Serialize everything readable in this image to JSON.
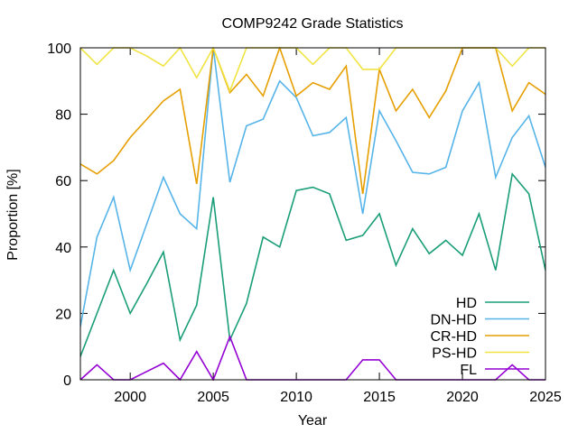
{
  "chart_data": {
    "type": "line",
    "title": "COMP9242 Grade Statistics",
    "xlabel": "Year",
    "ylabel": "Proportion [%]",
    "xlim": [
      1997,
      2025
    ],
    "ylim": [
      0,
      100
    ],
    "xticks": [
      2000,
      2005,
      2010,
      2015,
      2020,
      2025
    ],
    "yticks": [
      0,
      20,
      40,
      60,
      80,
      100
    ],
    "grid": false,
    "legend_position": "bottom-right",
    "x": [
      1997,
      1998,
      1999,
      2000,
      2001,
      2002,
      2003,
      2004,
      2005,
      2006,
      2007,
      2008,
      2009,
      2010,
      2011,
      2012,
      2013,
      2014,
      2015,
      2016,
      2017,
      2018,
      2019,
      2020,
      2021,
      2022,
      2023,
      2024,
      2025
    ],
    "series": [
      {
        "name": "HD",
        "color": "#1a9e77",
        "values": [
          7,
          20,
          33,
          20,
          29,
          38.5,
          12,
          22.5,
          55,
          12,
          23,
          43,
          40,
          57,
          58,
          56,
          42,
          43.5,
          50,
          34.5,
          45.5,
          38,
          42,
          37.5,
          50,
          33,
          62,
          56,
          33
        ]
      },
      {
        "name": "DN-HD",
        "color": "#56b4e9",
        "values": [
          16,
          43,
          55,
          33,
          47,
          61,
          50,
          45.5,
          100,
          59.5,
          76.5,
          78.5,
          90,
          85,
          73.5,
          74.5,
          79,
          50,
          81,
          72,
          62.5,
          62,
          64,
          81,
          89.5,
          61,
          73,
          79.5,
          64
        ]
      },
      {
        "name": "CR-HD",
        "color": "#e69f00",
        "values": [
          65,
          62,
          66,
          73,
          78.5,
          84,
          87.5,
          59,
          100,
          86.5,
          92,
          85.5,
          100,
          85.5,
          89.5,
          87.5,
          94.5,
          56,
          93.5,
          81,
          87.5,
          79,
          87,
          100,
          100,
          100,
          81,
          89.5,
          86
        ]
      },
      {
        "name": "PS-HD",
        "color": "#f0e442",
        "values": [
          100,
          95,
          100,
          100,
          97.5,
          94.5,
          100,
          91,
          100,
          87,
          100,
          100,
          100,
          100,
          95,
          100,
          100,
          93.5,
          93.5,
          100,
          100,
          100,
          100,
          100,
          100,
          100,
          94.5,
          100,
          100
        ]
      },
      {
        "name": "FL",
        "color": "#9400d3",
        "values": [
          0,
          4.5,
          0,
          0,
          2.5,
          5,
          0,
          8.5,
          0,
          13,
          0,
          0,
          0,
          0,
          0,
          0,
          0,
          6,
          6,
          0,
          0,
          0,
          0,
          0,
          0,
          0,
          4.5,
          0,
          0
        ]
      }
    ]
  }
}
